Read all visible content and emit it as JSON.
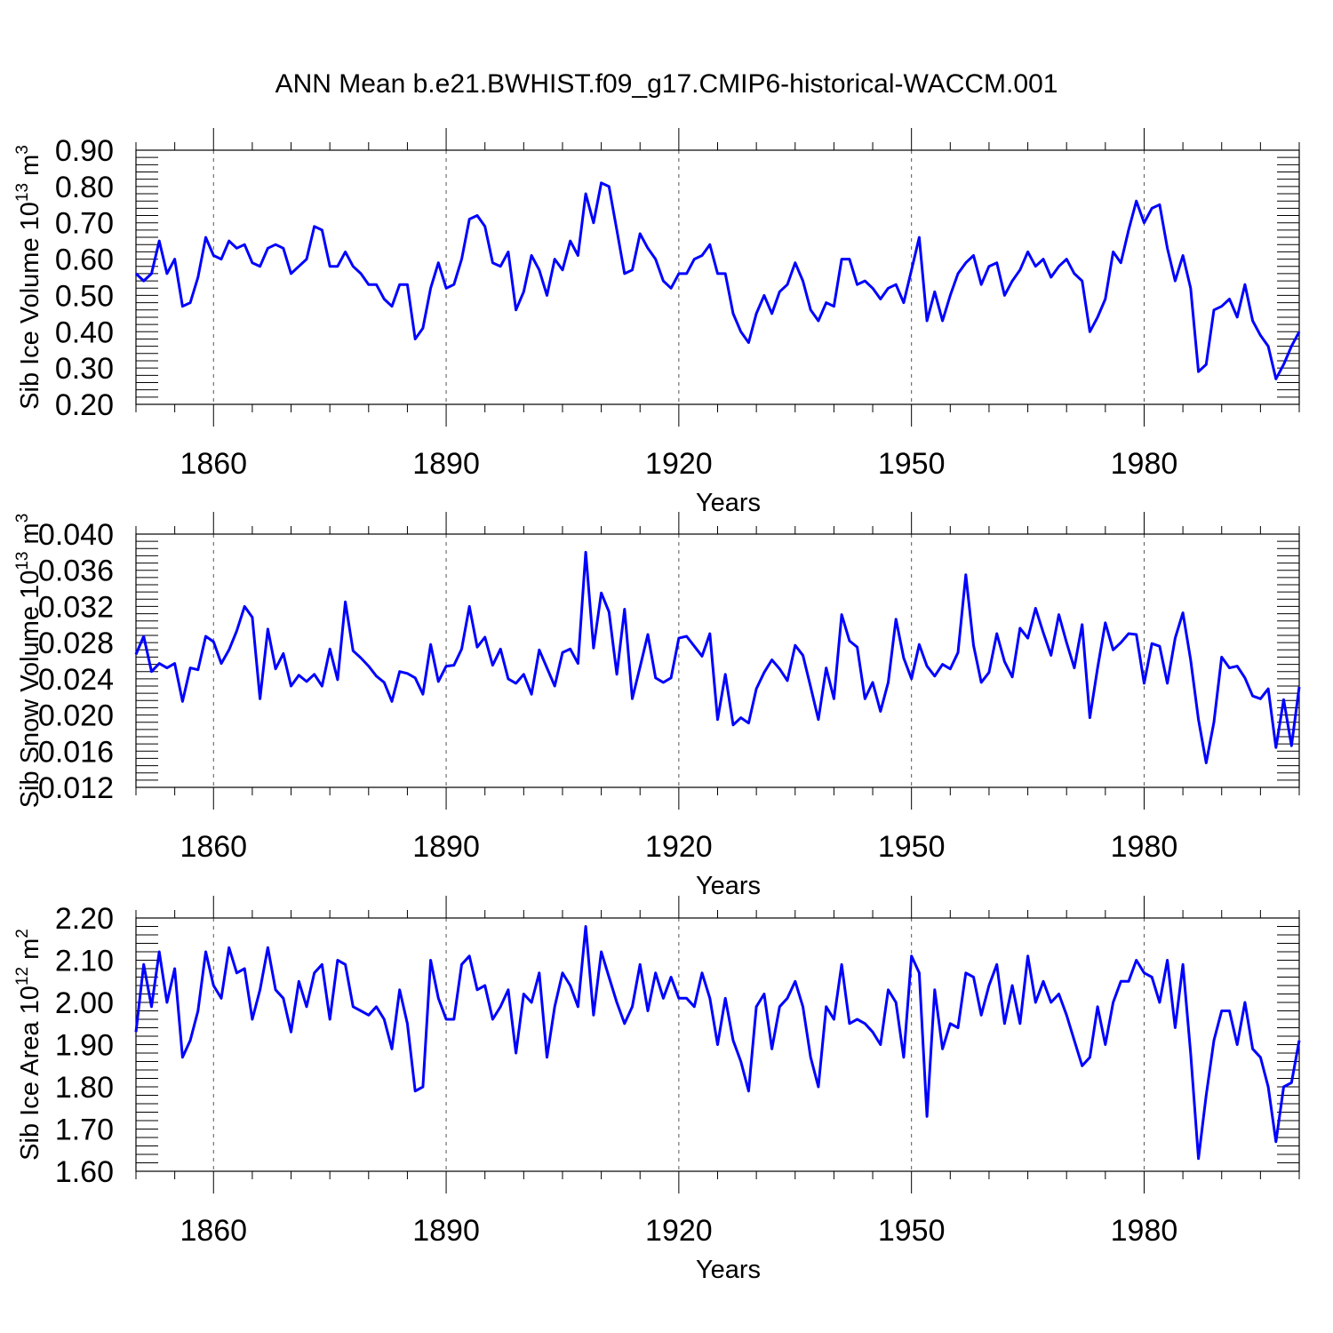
{
  "title": "ANN Mean b.e21.BWHIST.f09_g17.CMIP6-historical-WACCM.001",
  "line_color": "#0000ff",
  "chart_data": [
    {
      "type": "line",
      "ylabel": "Sib Ice Volume 10",
      "ylabel_exp": "13",
      "ylabel_unit": " m",
      "ylabel_unit_exp": "3",
      "xlabel": "Years",
      "x_start": 1850,
      "xlim": [
        1850,
        2000
      ],
      "ylim": [
        0.2,
        0.9
      ],
      "yticks": [
        "0.20",
        "0.30",
        "0.40",
        "0.50",
        "0.60",
        "0.70",
        "0.80",
        "0.90"
      ],
      "xticks": [
        "1860",
        "1890",
        "1920",
        "1950",
        "1980"
      ],
      "values": [
        0.56,
        0.54,
        0.56,
        0.65,
        0.56,
        0.6,
        0.47,
        0.48,
        0.55,
        0.66,
        0.61,
        0.6,
        0.65,
        0.63,
        0.64,
        0.59,
        0.58,
        0.63,
        0.64,
        0.63,
        0.56,
        0.58,
        0.6,
        0.69,
        0.68,
        0.58,
        0.58,
        0.62,
        0.58,
        0.56,
        0.53,
        0.53,
        0.49,
        0.47,
        0.53,
        0.53,
        0.38,
        0.41,
        0.52,
        0.59,
        0.52,
        0.53,
        0.6,
        0.71,
        0.72,
        0.69,
        0.59,
        0.58,
        0.62,
        0.46,
        0.51,
        0.61,
        0.57,
        0.5,
        0.6,
        0.57,
        0.65,
        0.61,
        0.78,
        0.7,
        0.81,
        0.8,
        0.68,
        0.56,
        0.57,
        0.67,
        0.63,
        0.6,
        0.54,
        0.52,
        0.56,
        0.56,
        0.6,
        0.61,
        0.64,
        0.56,
        0.56,
        0.45,
        0.4,
        0.37,
        0.45,
        0.5,
        0.45,
        0.51,
        0.53,
        0.59,
        0.54,
        0.46,
        0.43,
        0.48,
        0.47,
        0.6,
        0.6,
        0.53,
        0.54,
        0.52,
        0.49,
        0.52,
        0.53,
        0.48,
        0.57,
        0.66,
        0.43,
        0.51,
        0.43,
        0.5,
        0.56,
        0.59,
        0.61,
        0.53,
        0.58,
        0.59,
        0.5,
        0.54,
        0.57,
        0.62,
        0.58,
        0.6,
        0.55,
        0.58,
        0.6,
        0.56,
        0.54,
        0.4,
        0.44,
        0.49,
        0.62,
        0.59,
        0.68,
        0.76,
        0.7,
        0.74,
        0.75,
        0.63,
        0.54,
        0.61,
        0.52,
        0.29,
        0.31,
        0.46,
        0.47,
        0.49,
        0.44,
        0.53,
        0.43,
        0.39,
        0.36,
        0.27,
        0.31,
        0.36,
        0.4
      ]
    },
    {
      "type": "line",
      "ylabel": "Sib Snow Volume 10",
      "ylabel_exp": "13",
      "ylabel_unit": " m",
      "ylabel_unit_exp": "3",
      "xlabel": "Years",
      "x_start": 1850,
      "xlim": [
        1850,
        2000
      ],
      "ylim": [
        0.012,
        0.04
      ],
      "yticks": [
        "0.012",
        "0.016",
        "0.020",
        "0.024",
        "0.028",
        "0.032",
        "0.036",
        "0.040"
      ],
      "xticks": [
        "1860",
        "1890",
        "1920",
        "1950",
        "1980"
      ],
      "values": [
        0.0267,
        0.0287,
        0.0248,
        0.0257,
        0.0252,
        0.0257,
        0.0215,
        0.0252,
        0.025,
        0.0287,
        0.0281,
        0.0257,
        0.0272,
        0.0293,
        0.032,
        0.0308,
        0.0218,
        0.0295,
        0.0251,
        0.0268,
        0.0232,
        0.0244,
        0.0237,
        0.0245,
        0.0232,
        0.0273,
        0.0239,
        0.0325,
        0.0271,
        0.0263,
        0.0254,
        0.0243,
        0.0236,
        0.0215,
        0.0248,
        0.0246,
        0.0241,
        0.0223,
        0.0278,
        0.0237,
        0.0254,
        0.0255,
        0.0273,
        0.032,
        0.0275,
        0.0286,
        0.0255,
        0.0273,
        0.024,
        0.0235,
        0.0245,
        0.0223,
        0.0272,
        0.0252,
        0.0232,
        0.0269,
        0.0273,
        0.0257,
        0.038,
        0.0274,
        0.0335,
        0.0314,
        0.0245,
        0.0317,
        0.0218,
        0.0253,
        0.0289,
        0.0241,
        0.0236,
        0.0241,
        0.0285,
        0.0287,
        0.0276,
        0.0265,
        0.029,
        0.0195,
        0.0245,
        0.0189,
        0.0197,
        0.0191,
        0.0229,
        0.0247,
        0.0261,
        0.0251,
        0.0238,
        0.0277,
        0.0266,
        0.0231,
        0.0195,
        0.0252,
        0.0218,
        0.0311,
        0.0282,
        0.0275,
        0.0218,
        0.0236,
        0.0204,
        0.0236,
        0.0306,
        0.0263,
        0.024,
        0.0278,
        0.0254,
        0.0243,
        0.0256,
        0.0251,
        0.0269,
        0.0355,
        0.0277,
        0.0236,
        0.0247,
        0.029,
        0.0259,
        0.0242,
        0.0296,
        0.0285,
        0.0318,
        0.0291,
        0.0266,
        0.0311,
        0.028,
        0.0252,
        0.03,
        0.0197,
        0.0252,
        0.0302,
        0.0272,
        0.028,
        0.029,
        0.0289,
        0.0235,
        0.0279,
        0.0276,
        0.0235,
        0.0285,
        0.0313,
        0.0261,
        0.0195,
        0.0147,
        0.0192,
        0.0264,
        0.0252,
        0.0254,
        0.0241,
        0.0221,
        0.0218,
        0.0229,
        0.0164,
        0.0217,
        0.0166,
        0.0231
      ]
    },
    {
      "type": "line",
      "ylabel": "Sib Ice Area 10",
      "ylabel_exp": "12",
      "ylabel_unit": " m",
      "ylabel_unit_exp": "2",
      "xlabel": "Years",
      "x_start": 1850,
      "xlim": [
        1850,
        2000
      ],
      "ylim": [
        1.6,
        2.2
      ],
      "yticks": [
        "1.60",
        "1.70",
        "1.80",
        "1.90",
        "2.00",
        "2.10",
        "2.20"
      ],
      "xticks": [
        "1860",
        "1890",
        "1920",
        "1950",
        "1980"
      ],
      "values": [
        1.93,
        2.09,
        1.99,
        2.12,
        2.0,
        2.08,
        1.87,
        1.91,
        1.98,
        2.12,
        2.04,
        2.01,
        2.13,
        2.07,
        2.08,
        1.96,
        2.03,
        2.13,
        2.03,
        2.01,
        1.93,
        2.05,
        1.99,
        2.07,
        2.09,
        1.96,
        2.1,
        2.09,
        1.99,
        1.98,
        1.97,
        1.99,
        1.96,
        1.89,
        2.03,
        1.95,
        1.79,
        1.8,
        2.1,
        2.01,
        1.96,
        1.96,
        2.09,
        2.11,
        2.03,
        2.04,
        1.96,
        1.99,
        2.03,
        1.88,
        2.02,
        2.0,
        2.07,
        1.87,
        1.99,
        2.07,
        2.04,
        1.99,
        2.18,
        1.97,
        2.12,
        2.06,
        2.0,
        1.95,
        1.99,
        2.09,
        1.98,
        2.07,
        2.01,
        2.06,
        2.01,
        2.01,
        1.99,
        2.07,
        2.01,
        1.9,
        2.01,
        1.91,
        1.86,
        1.79,
        1.99,
        2.02,
        1.89,
        1.99,
        2.01,
        2.05,
        1.99,
        1.87,
        1.8,
        1.99,
        1.96,
        2.09,
        1.95,
        1.96,
        1.95,
        1.93,
        1.9,
        2.03,
        2.0,
        1.87,
        2.11,
        2.07,
        1.73,
        2.03,
        1.89,
        1.95,
        1.94,
        2.07,
        2.06,
        1.97,
        2.04,
        2.09,
        1.95,
        2.04,
        1.95,
        2.11,
        2.0,
        2.05,
        2.0,
        2.02,
        1.97,
        1.91,
        1.85,
        1.87,
        1.99,
        1.9,
        2.0,
        2.05,
        2.05,
        2.1,
        2.07,
        2.06,
        2.0,
        2.1,
        1.94,
        2.09,
        1.88,
        1.63,
        1.78,
        1.91,
        1.98,
        1.98,
        1.9,
        2.0,
        1.89,
        1.87,
        1.8,
        1.67,
        1.8,
        1.81,
        1.91
      ]
    }
  ]
}
